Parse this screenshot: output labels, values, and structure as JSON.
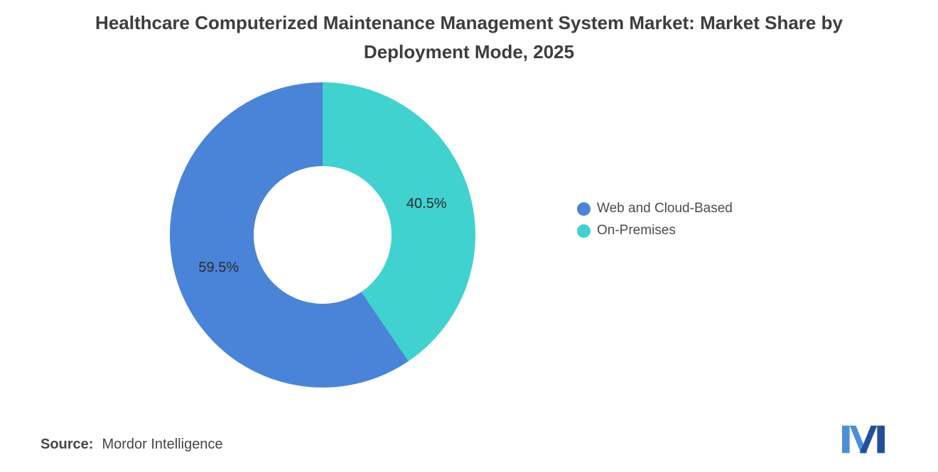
{
  "source": {
    "label": "Source:",
    "value": "Mordor Intelligence"
  },
  "branding": {
    "logo_left_color": "#4A90D9",
    "logo_right_color": "#24509B"
  },
  "chart_data": {
    "type": "pie",
    "donut": true,
    "hole_radius_ratio": 0.45,
    "title": "Healthcare Computerized Maintenance Management System Market: Market Share by Deployment Mode, 2025",
    "legend_position": "right",
    "start_angle_deg": 0,
    "direction": "clockwise",
    "segments": [
      {
        "label": "Web and Cloud-Based",
        "value": 59.5,
        "display": "59.5%",
        "color": "#4A84D9"
      },
      {
        "label": "On-Premises",
        "value": 40.5,
        "display": "40.5%",
        "color": "#3FD2CE"
      }
    ]
  }
}
